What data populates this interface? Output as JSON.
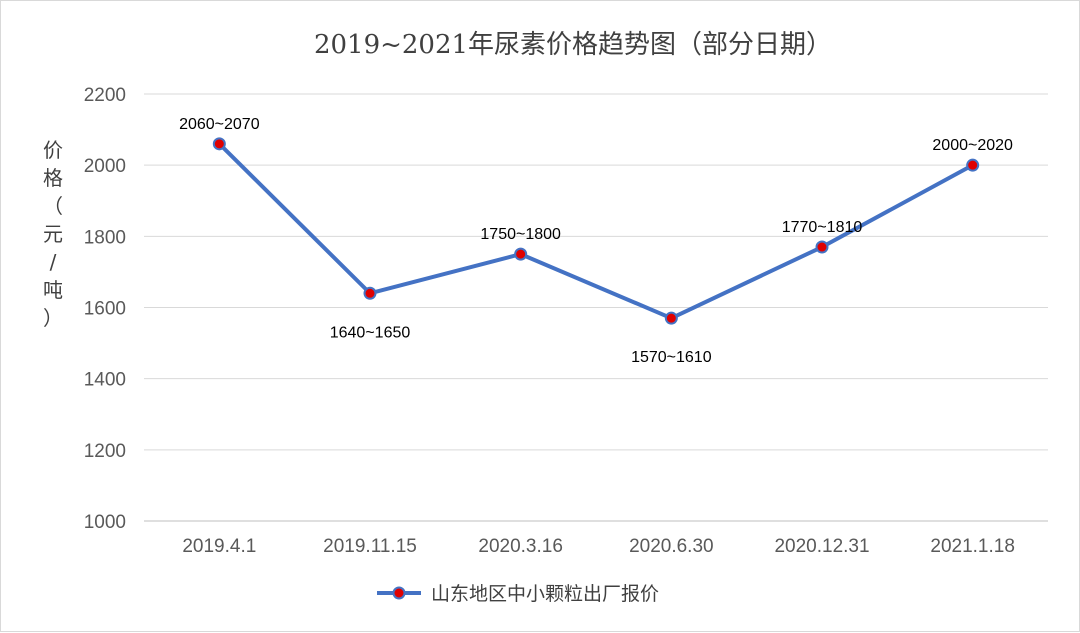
{
  "chart_data": {
    "type": "line",
    "title": "2019~2021年尿素价格趋势图（部分日期）",
    "xlabel": "",
    "ylabel": "价格（元/吨）",
    "ylim": [
      1000,
      2200
    ],
    "yticks": [
      1000,
      1200,
      1400,
      1600,
      1800,
      2000,
      2200
    ],
    "categories": [
      "2019.4.1",
      "2019.11.15",
      "2020.3.16",
      "2020.6.30",
      "2020.12.31",
      "2021.1.18"
    ],
    "series": [
      {
        "name": "山东地区中小颗粒出厂报价",
        "values": [
          2060,
          1640,
          1750,
          1570,
          1770,
          2000
        ],
        "data_labels": [
          "2060~2070",
          "1640~1650",
          "1750~1800",
          "1570~1610",
          "1770~1810",
          "2000~2020"
        ],
        "line_color": "#4472c4",
        "marker_color": "#e00000"
      }
    ],
    "grid": true,
    "legend_position": "bottom"
  }
}
